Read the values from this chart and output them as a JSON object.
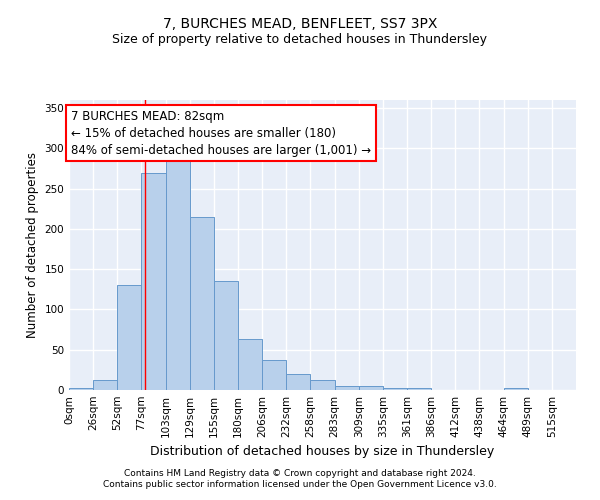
{
  "title": "7, BURCHES MEAD, BENFLEET, SS7 3PX",
  "subtitle": "Size of property relative to detached houses in Thundersley",
  "xlabel": "Distribution of detached houses by size in Thundersley",
  "ylabel": "Number of detached properties",
  "footer1": "Contains HM Land Registry data © Crown copyright and database right 2024.",
  "footer2": "Contains public sector information licensed under the Open Government Licence v3.0.",
  "bin_labels": [
    "0sqm",
    "26sqm",
    "52sqm",
    "77sqm",
    "103sqm",
    "129sqm",
    "155sqm",
    "180sqm",
    "206sqm",
    "232sqm",
    "258sqm",
    "283sqm",
    "309sqm",
    "335sqm",
    "361sqm",
    "386sqm",
    "412sqm",
    "438sqm",
    "464sqm",
    "489sqm",
    "515sqm"
  ],
  "bar_heights": [
    3,
    13,
    130,
    270,
    287,
    215,
    135,
    63,
    37,
    20,
    12,
    5,
    5,
    3,
    2,
    0,
    0,
    0,
    2,
    0,
    0
  ],
  "bar_color": "#b8d0eb",
  "bar_edge_color": "#6699cc",
  "bg_color": "#e8eef8",
  "grid_color": "#ffffff",
  "annotation_text": "7 BURCHES MEAD: 82sqm\n← 15% of detached houses are smaller (180)\n84% of semi-detached houses are larger (1,001) →",
  "vline_x": 82,
  "ylim": [
    0,
    360
  ],
  "yticks": [
    0,
    50,
    100,
    150,
    200,
    250,
    300,
    350
  ],
  "title_fontsize": 10,
  "subtitle_fontsize": 9,
  "ylabel_fontsize": 8.5,
  "xlabel_fontsize": 9,
  "tick_fontsize": 7.5,
  "footer_fontsize": 6.5,
  "ann_fontsize": 8.5
}
